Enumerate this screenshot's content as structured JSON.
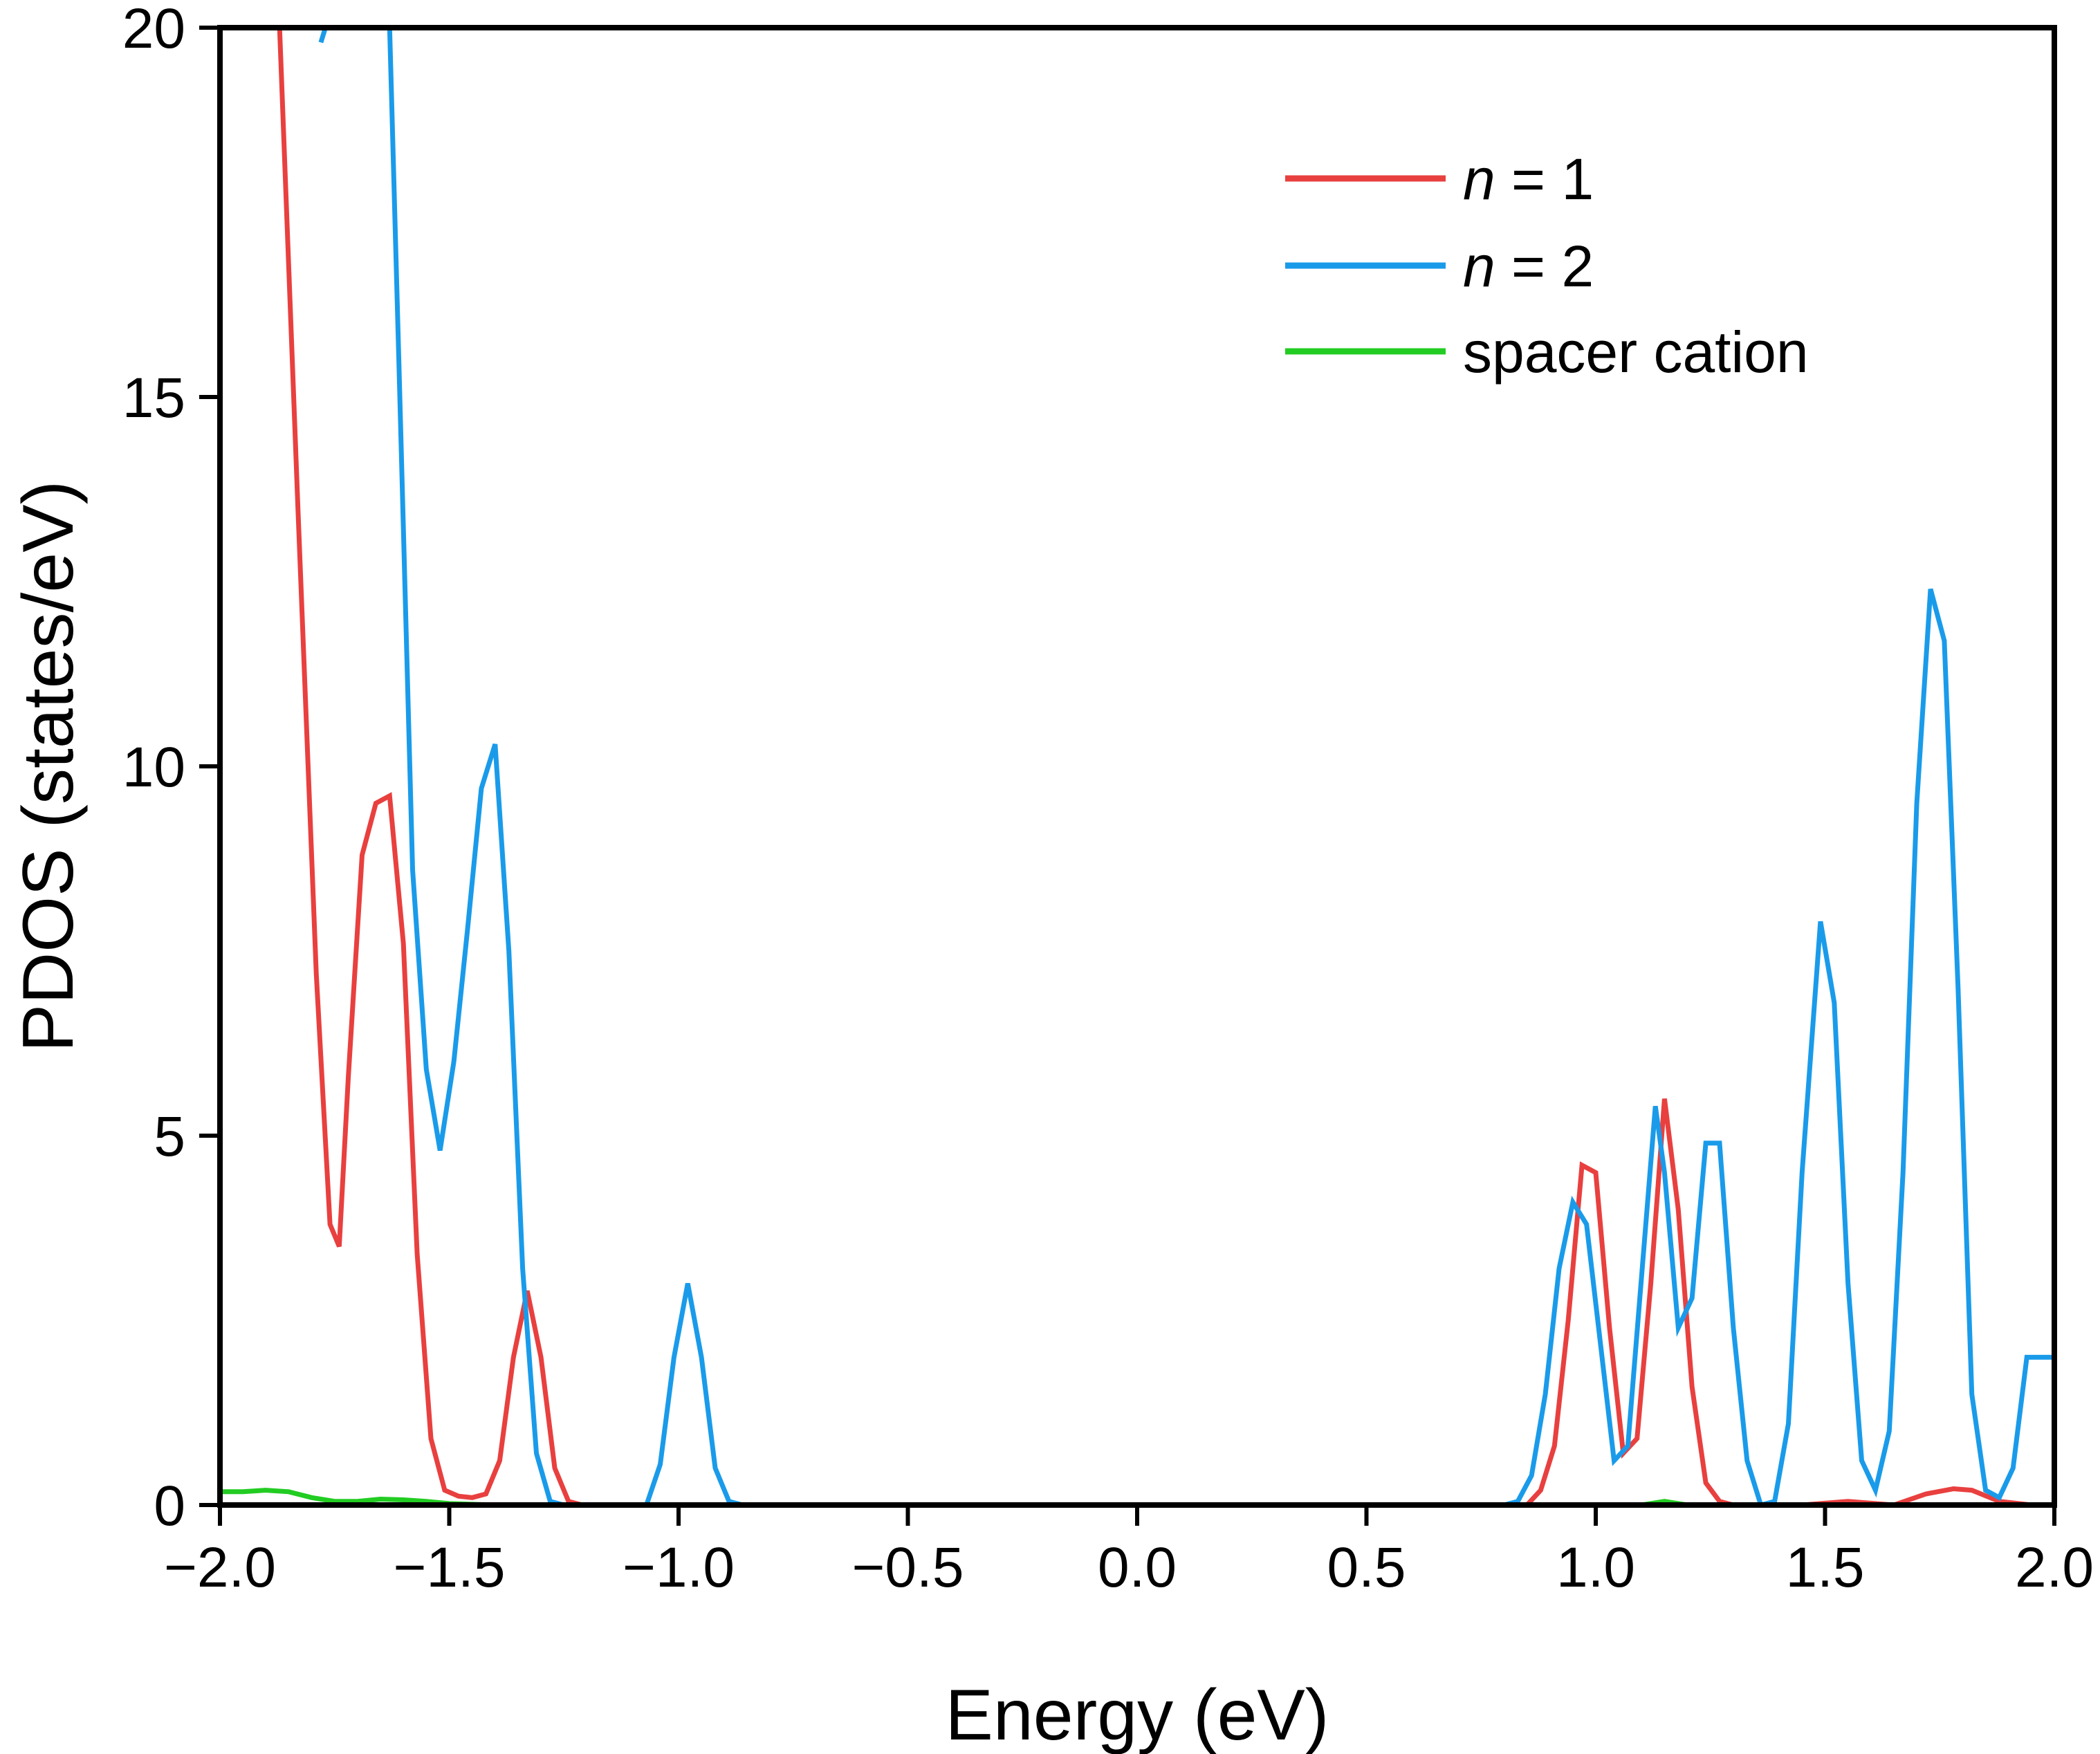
{
  "chart_data": {
    "type": "line",
    "title": "",
    "xlabel": "Energy (eV)",
    "ylabel": "PDOS (states/eV)",
    "xlim": [
      -2.0,
      2.0
    ],
    "ylim": [
      0,
      20
    ],
    "xticks": [
      -2.0,
      -1.5,
      -1.0,
      -0.5,
      0.0,
      0.5,
      1.0,
      1.5,
      2.0
    ],
    "xtick_labels": [
      "−2.0",
      "−1.5",
      "−1.0",
      "−0.5",
      "0.0",
      "0.5",
      "1.0",
      "1.5",
      "2.0"
    ],
    "yticks": [
      0,
      5,
      10,
      15,
      20
    ],
    "ytick_labels": [
      "0",
      "5",
      "10",
      "15",
      "20"
    ],
    "grid": false,
    "legend_position": "top-right",
    "series": [
      {
        "name": "n = 1",
        "legend_italic": "n",
        "legend_rest": " = 1",
        "color": "#e8403f",
        "x": [
          -1.87,
          -1.83,
          -1.79,
          -1.76,
          -1.74,
          -1.72,
          -1.69,
          -1.66,
          -1.63,
          -1.6,
          -1.57,
          -1.54,
          -1.51,
          -1.48,
          -1.45,
          -1.42,
          -1.39,
          -1.36,
          -1.33,
          -1.3,
          -1.27,
          -1.24,
          -1.21,
          -1.18,
          -1.15,
          0.85,
          0.88,
          0.91,
          0.94,
          0.97,
          1.0,
          1.03,
          1.06,
          1.09,
          1.12,
          1.15,
          1.18,
          1.21,
          1.24,
          1.27,
          1.3,
          1.45,
          1.55,
          1.65,
          1.72,
          1.78,
          1.82,
          1.88,
          1.95,
          2.0
        ],
        "y": [
          20.0,
          13.5,
          7.2,
          3.8,
          3.5,
          5.8,
          8.8,
          9.5,
          9.6,
          7.6,
          3.4,
          0.9,
          0.2,
          0.12,
          0.1,
          0.15,
          0.6,
          2.0,
          2.9,
          2.0,
          0.5,
          0.05,
          0.0,
          0.0,
          0.0,
          0.0,
          0.2,
          0.8,
          2.5,
          4.6,
          4.5,
          2.4,
          0.7,
          0.9,
          3.0,
          5.5,
          4.0,
          1.6,
          0.3,
          0.05,
          0.0,
          0.0,
          0.05,
          0.0,
          0.15,
          0.22,
          0.2,
          0.05,
          0.0,
          0.0
        ]
      },
      {
        "name": "n = 2",
        "legend_italic": "n",
        "legend_rest": " = 2",
        "color": "#1a9bea",
        "x": [
          -1.78,
          -1.77,
          -1.63,
          -1.61,
          -1.58,
          -1.55,
          -1.52,
          -1.49,
          -1.46,
          -1.43,
          -1.4,
          -1.37,
          -1.34,
          -1.31,
          -1.28,
          -1.25,
          -1.22,
          -1.19,
          -1.07,
          -1.04,
          -1.01,
          -0.98,
          -0.95,
          -0.92,
          -0.89,
          -0.86,
          -0.8,
          0.8,
          0.83,
          0.86,
          0.89,
          0.92,
          0.95,
          0.98,
          1.01,
          1.04,
          1.07,
          1.1,
          1.13,
          1.15,
          1.18,
          1.21,
          1.24,
          1.27,
          1.3,
          1.33,
          1.36,
          1.39,
          1.42,
          1.45,
          1.49,
          1.52,
          1.55,
          1.58,
          1.61,
          1.64,
          1.67,
          1.7,
          1.73,
          1.76,
          1.79,
          1.82,
          1.85,
          1.88,
          1.91,
          1.94,
          1.97,
          2.0
        ],
        "y": [
          19.8,
          20.0,
          20.0,
          15.5,
          8.6,
          5.9,
          4.8,
          6.0,
          7.8,
          9.7,
          10.3,
          7.5,
          3.2,
          0.7,
          0.05,
          0.0,
          0.0,
          0.0,
          0.0,
          0.55,
          2.0,
          3.0,
          2.0,
          0.5,
          0.05,
          0.0,
          0.0,
          0.0,
          0.05,
          0.4,
          1.5,
          3.2,
          4.1,
          3.8,
          2.2,
          0.6,
          0.8,
          3.1,
          5.4,
          4.5,
          2.4,
          2.8,
          4.9,
          4.9,
          2.4,
          0.6,
          0.0,
          0.05,
          1.1,
          4.5,
          7.9,
          6.8,
          3.0,
          0.6,
          0.2,
          1.0,
          4.5,
          9.5,
          12.4,
          11.7,
          7.0,
          1.5,
          0.2,
          0.1,
          0.5,
          2.0,
          2.0,
          2.0
        ]
      },
      {
        "name": "spacer cation",
        "legend_italic": "",
        "legend_rest": "spacer cation",
        "color": "#22cc22",
        "x": [
          -2.0,
          -1.95,
          -1.9,
          -1.85,
          -1.8,
          -1.75,
          -1.7,
          -1.65,
          -1.6,
          -1.55,
          -1.5,
          -1.4,
          -1.2,
          1.1,
          1.15,
          1.2,
          2.0
        ],
        "y": [
          0.18,
          0.18,
          0.2,
          0.18,
          0.1,
          0.05,
          0.05,
          0.08,
          0.07,
          0.05,
          0.02,
          0.0,
          0.0,
          0.0,
          0.05,
          0.0,
          0.0
        ]
      }
    ]
  }
}
